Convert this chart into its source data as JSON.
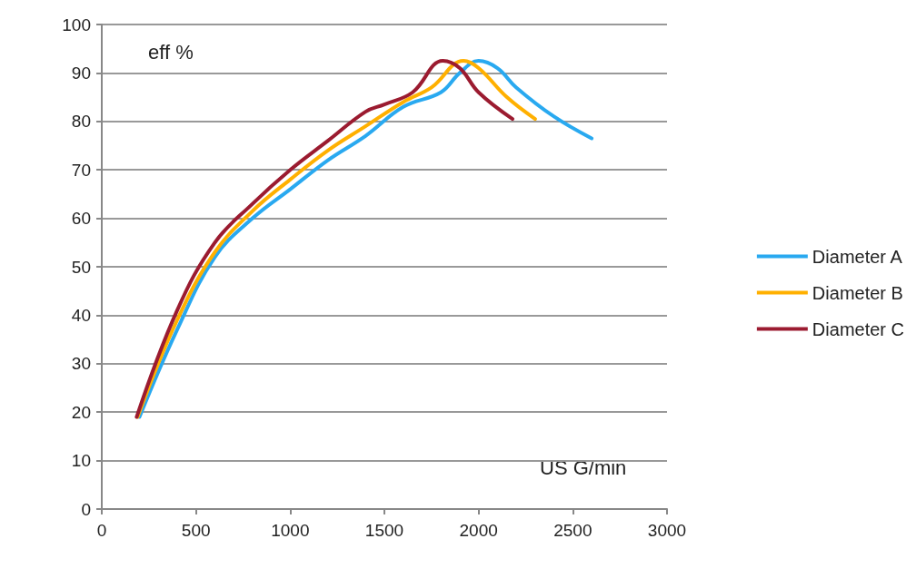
{
  "chart_data": {
    "type": "line",
    "xlabel": "US G/min",
    "ylabel": "eff %",
    "xlim": [
      0,
      3000
    ],
    "xticks": [
      0,
      500,
      1000,
      1500,
      2000,
      2500,
      3000
    ],
    "ylim": [
      0,
      100
    ],
    "yticks": [
      0,
      10,
      20,
      30,
      40,
      50,
      60,
      70,
      80,
      90,
      100
    ],
    "grid": "y",
    "legend": "right",
    "marker": "none",
    "line_style": "solid",
    "series": [
      {
        "name": "Diameter A",
        "color": "#29a9f0",
        "x": [
          200,
          400,
          600,
          800,
          1000,
          1200,
          1400,
          1600,
          1800,
          1900,
          2000,
          2100,
          2200,
          2400,
          2600
        ],
        "values": [
          19,
          37,
          52,
          60,
          66,
          72,
          77,
          83,
          86,
          90,
          92.5,
          91,
          87,
          81,
          76.5
        ]
      },
      {
        "name": "Diameter B",
        "color": "#ffb000",
        "x": [
          190,
          400,
          600,
          800,
          1000,
          1200,
          1400,
          1600,
          1750,
          1920,
          2000,
          2150,
          2300
        ],
        "values": [
          19,
          39,
          53,
          61.5,
          68,
          74,
          79,
          84,
          87,
          92.5,
          91,
          85,
          80.5
        ]
      },
      {
        "name": "Diameter C",
        "color": "#9b1b30",
        "x": [
          185,
          400,
          600,
          800,
          1000,
          1200,
          1400,
          1500,
          1650,
          1810,
          1900,
          2000,
          2180
        ],
        "values": [
          19,
          41,
          55,
          63,
          70,
          76,
          82,
          83.5,
          86,
          92.5,
          91,
          86,
          80.5
        ]
      }
    ]
  }
}
